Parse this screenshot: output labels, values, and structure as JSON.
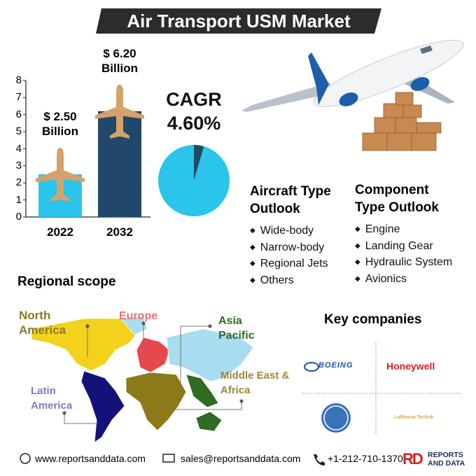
{
  "title": "Air Transport USM Market",
  "chart_data": [
    {
      "type": "bar",
      "categories": [
        "2022",
        "2032"
      ],
      "values": [
        2.5,
        6.2
      ],
      "value_labels": [
        "$ 2.50 Billion",
        "$ 6.20 Billion"
      ],
      "colors": [
        "#2bc4ea",
        "#21486a"
      ],
      "ylim": [
        0,
        8
      ],
      "yticks": [
        0,
        1,
        2,
        3,
        4,
        5,
        6,
        7,
        8
      ]
    },
    {
      "type": "pie",
      "title": "CAGR",
      "values": [
        4.6,
        95.4
      ],
      "value_labels": [
        "4.60%",
        null
      ],
      "colors": [
        "#1d4a66",
        "#2bc4ea"
      ]
    }
  ],
  "aircraft_type_outlook": {
    "title": "Aircraft Type Outlook",
    "items": [
      "Wide-body",
      "Narrow-body",
      "Regional Jets",
      "Others"
    ]
  },
  "component_type_outlook": {
    "title": "Component Type Outlook",
    "items": [
      "Engine",
      "Landing Gear",
      "Hydraulic System",
      "Avionics"
    ]
  },
  "regional_scope": {
    "title": "Regional scope",
    "regions": [
      "North America",
      "Europe",
      "Asia Pacific",
      "Latin America",
      "Middle East & Africa"
    ]
  },
  "key_companies": {
    "title": "Key companies",
    "companies": [
      "BOEING",
      "Honeywell",
      "Lufthansa Technik"
    ]
  },
  "footer": {
    "website": "www.reportsanddata.com",
    "email": "sales@reportsanddata.com",
    "phone": "+1-212-710-1370",
    "logo": "RD",
    "brand": "REPORTS AND DATA"
  }
}
